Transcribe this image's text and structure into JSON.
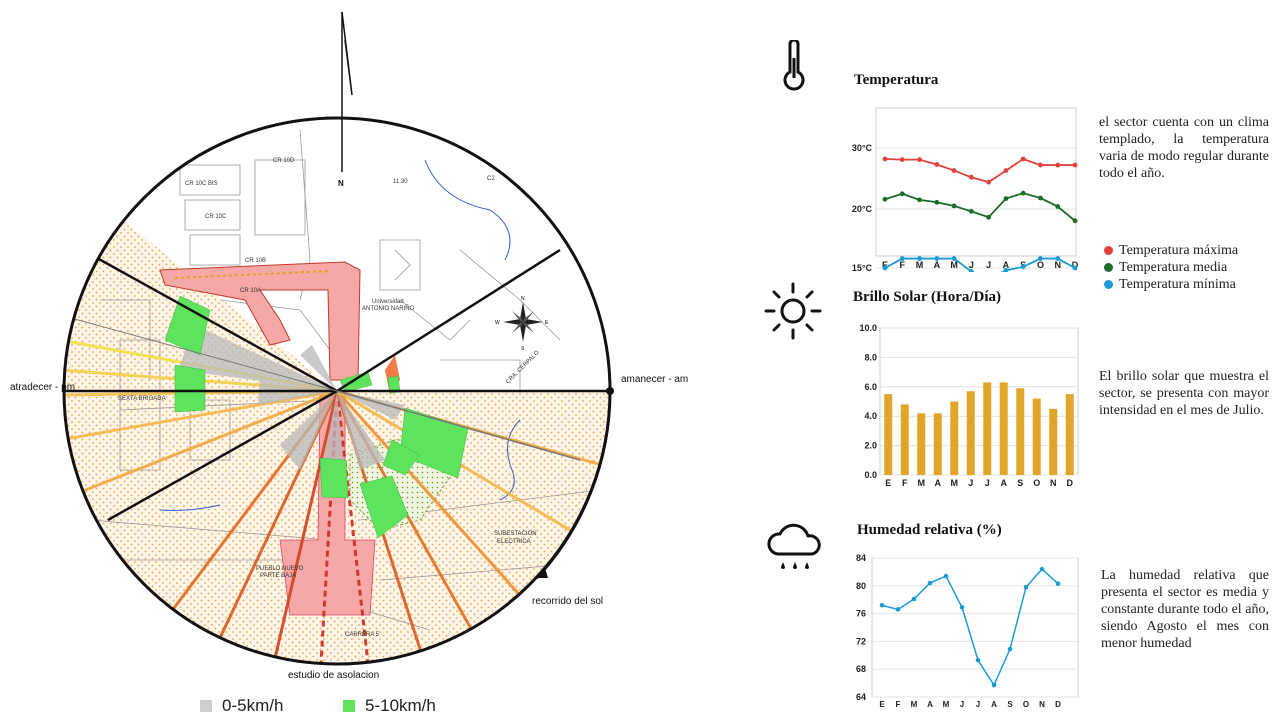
{
  "site_plan": {
    "label_sunset": "atradecer - pm",
    "label_sunrise": "amanecer - am",
    "label_sun_path": "recorrido del sol",
    "label_study": "estudio de asolacion",
    "north_letter": "N",
    "compass": {
      "n": "N",
      "e": "E",
      "s": "S",
      "w": "W"
    },
    "map_labels": [
      "CR 10C BIS",
      "CR 10C",
      "CR 10D",
      "CR 10B",
      "CR 10A",
      "Universidad",
      "ANTONIO NARIÑO",
      "SEXTA BRIGADA",
      "SUBESTACION",
      "ELECTRICA",
      "PUEBLO NUEVO",
      "PARTE BAJA",
      "CARRERA 5",
      "CRA. CERPALO",
      "11.30",
      "C2"
    ]
  },
  "wind_legend": {
    "items": [
      {
        "label": "0-5km/h",
        "color": "#cfcfcf"
      },
      {
        "label": "5-10km/h",
        "color": "#5ee35e"
      }
    ]
  },
  "temperature": {
    "title": "Temperatura",
    "description": "el sector cuenta con un clima templado, la temperatura varia de modo regular durante todo el año.",
    "legend": [
      {
        "label": "Temperatura máxima",
        "color": "#e0413f"
      },
      {
        "label": "Temperatura media",
        "color": "#1b6b2a"
      },
      {
        "label": "Temperatura mínima",
        "color": "#1a9bd7"
      }
    ]
  },
  "sunshine": {
    "title": "Brillo Solar (Hora/Día)",
    "description": "El brillo solar que muestra el sector, se presenta con mayor intensidad en el mes de Julio."
  },
  "humidity": {
    "title": "Humedad relativa (%)",
    "description": "La humedad relativa que presenta el sector es media y constante durante todo el año, siendo Agosto el mes con menor humedad"
  },
  "chart_data": [
    {
      "type": "line",
      "title": "Temperatura",
      "categories": [
        "E",
        "F",
        "M",
        "A",
        "M",
        "J",
        "J",
        "A",
        "S",
        "O",
        "N",
        "D"
      ],
      "ytick_labels": [
        "30°C",
        "20°C",
        "15°C"
      ],
      "series": [
        {
          "name": "Temperatura máxima",
          "color": "#e0413f",
          "values": [
            28.2,
            28.1,
            28.1,
            27.3,
            26.3,
            25.2,
            24.4,
            26.3,
            28.2,
            27.2,
            27.2,
            27.2
          ]
        },
        {
          "name": "Temperatura media",
          "color": "#1b6b2a",
          "values": [
            21.6,
            22.5,
            21.5,
            21.1,
            20.5,
            19.8,
            19.3,
            21.7,
            22.6,
            21.8,
            20.4,
            19.0
          ]
        },
        {
          "name": "Temperatura mínima",
          "color": "#1a9bd7",
          "values": [
            15.0,
            15.8,
            15.8,
            15.8,
            15.8,
            14.7,
            14.0,
            14.8,
            15.1,
            15.8,
            15.8,
            15.0
          ]
        }
      ]
    },
    {
      "type": "bar",
      "title": "Brillo Solar (Hora/Día)",
      "categories": [
        "E",
        "F",
        "M",
        "A",
        "M",
        "J",
        "J",
        "A",
        "S",
        "O",
        "N",
        "D"
      ],
      "values": [
        5.5,
        4.8,
        4.2,
        4.2,
        5.0,
        5.7,
        6.3,
        6.3,
        5.9,
        5.2,
        4.5,
        5.5
      ],
      "yticks": [
        "0.0",
        "2.0",
        "4.0",
        "6.0",
        "8.0",
        "10.0"
      ],
      "ylim": [
        0,
        10
      ],
      "color": "#e0a52a"
    },
    {
      "type": "line",
      "title": "Humedad relativa (%)",
      "categories": [
        "E",
        "F",
        "M",
        "A",
        "M",
        "J",
        "J",
        "A",
        "S",
        "O",
        "N",
        "D"
      ],
      "values": [
        77.2,
        76.6,
        78.1,
        80.4,
        81.4,
        76.9,
        69.3,
        65.7,
        70.9,
        79.8,
        82.4,
        80.3
      ],
      "yticks": [
        "64",
        "68",
        "72",
        "76",
        "80",
        "84"
      ],
      "ylim": [
        64,
        84
      ],
      "color": "#1a9bd7"
    }
  ]
}
